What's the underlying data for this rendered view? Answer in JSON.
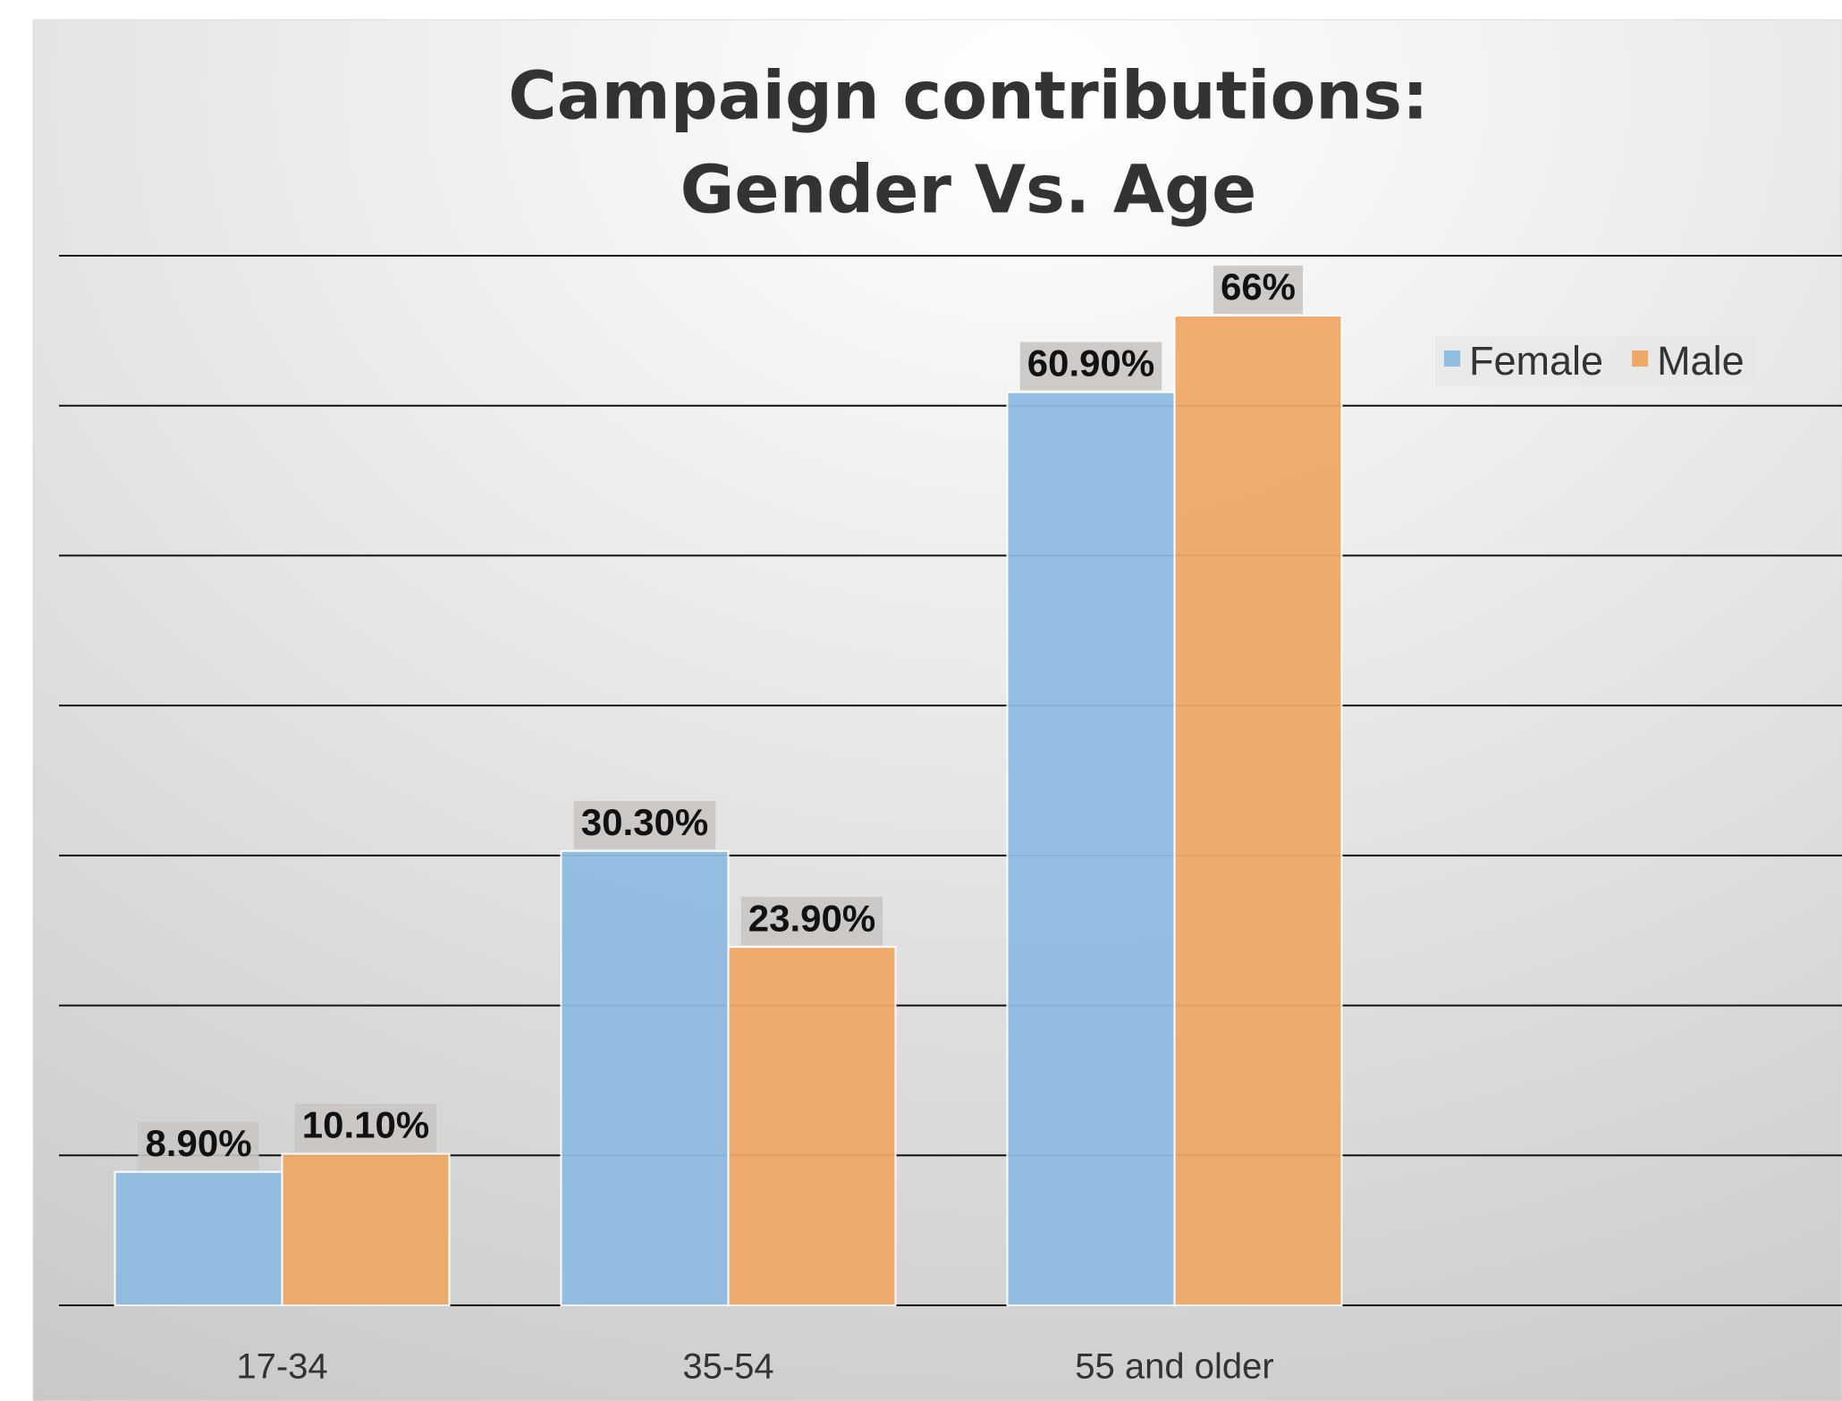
{
  "chart_data": {
    "type": "bar",
    "title": [
      "Campaign contributions:",
      "Gender Vs. Age"
    ],
    "categories": [
      "17-34",
      "35-54",
      "55 and older"
    ],
    "series": [
      {
        "name": "Female",
        "color": "#8fbce1",
        "values": [
          8.9,
          30.3,
          60.9
        ],
        "value_labels": [
          "8.90%",
          "30.30%",
          "60.90%"
        ]
      },
      {
        "name": "Male",
        "color": "#f0a868",
        "values": [
          10.1,
          23.9,
          66
        ],
        "value_labels": [
          "10.10%",
          "23.90%",
          "66%"
        ]
      }
    ],
    "ylim": [
      0,
      70
    ],
    "yticks": [
      0,
      10,
      20,
      30,
      40,
      50,
      60,
      70
    ],
    "grid": true,
    "legend": "upper right"
  }
}
